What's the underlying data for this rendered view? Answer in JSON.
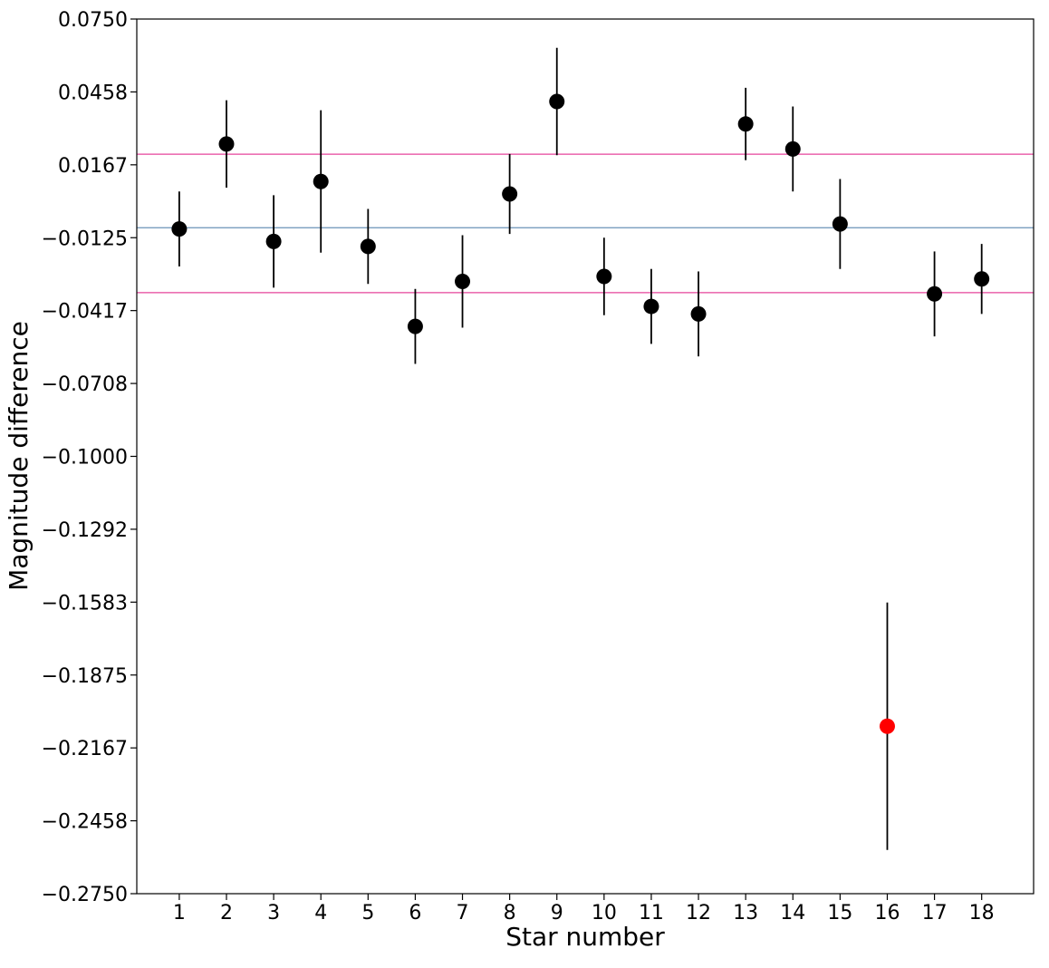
{
  "chart_data": {
    "type": "scatter",
    "title": "",
    "xlabel": "Star number",
    "ylabel": "Magnitude difference",
    "xlim": [
      0.1,
      19.1
    ],
    "ylim": [
      -0.275,
      0.075
    ],
    "x_ticks": [
      "1",
      "2",
      "3",
      "4",
      "5",
      "6",
      "7",
      "8",
      "9",
      "10",
      "11",
      "12",
      "13",
      "14",
      "15",
      "16",
      "17",
      "18"
    ],
    "y_ticks": [
      "0.0750",
      "0.0458",
      "0.0167",
      "−0.0125",
      "−0.0417",
      "−0.0708",
      "−0.1000",
      "−0.1292",
      "−0.1583",
      "−0.1875",
      "−0.2167",
      "−0.2458",
      "−0.2750"
    ],
    "grid": false,
    "points": [
      {
        "x": 1,
        "y": -0.009,
        "err_low": 0.015,
        "err_high": 0.015,
        "color": "#000000"
      },
      {
        "x": 2,
        "y": 0.025,
        "err_low": 0.0175,
        "err_high": 0.0175,
        "color": "#000000"
      },
      {
        "x": 3,
        "y": -0.014,
        "err_low": 0.0185,
        "err_high": 0.0185,
        "color": "#000000"
      },
      {
        "x": 4,
        "y": 0.01,
        "err_low": 0.0285,
        "err_high": 0.0285,
        "color": "#000000"
      },
      {
        "x": 5,
        "y": -0.016,
        "err_low": 0.015,
        "err_high": 0.015,
        "color": "#000000"
      },
      {
        "x": 6,
        "y": -0.048,
        "err_low": 0.015,
        "err_high": 0.015,
        "color": "#000000"
      },
      {
        "x": 7,
        "y": -0.03,
        "err_low": 0.0185,
        "err_high": 0.0185,
        "color": "#000000"
      },
      {
        "x": 8,
        "y": 0.005,
        "err_low": 0.016,
        "err_high": 0.016,
        "color": "#000000"
      },
      {
        "x": 9,
        "y": 0.042,
        "err_low": 0.0215,
        "err_high": 0.0215,
        "color": "#000000"
      },
      {
        "x": 10,
        "y": -0.028,
        "err_low": 0.0155,
        "err_high": 0.0155,
        "color": "#000000"
      },
      {
        "x": 11,
        "y": -0.04,
        "err_low": 0.015,
        "err_high": 0.015,
        "color": "#000000"
      },
      {
        "x": 12,
        "y": -0.043,
        "err_low": 0.017,
        "err_high": 0.017,
        "color": "#000000"
      },
      {
        "x": 13,
        "y": 0.033,
        "err_low": 0.0145,
        "err_high": 0.0145,
        "color": "#000000"
      },
      {
        "x": 14,
        "y": 0.023,
        "err_low": 0.017,
        "err_high": 0.017,
        "color": "#000000"
      },
      {
        "x": 15,
        "y": -0.007,
        "err_low": 0.018,
        "err_high": 0.018,
        "color": "#000000"
      },
      {
        "x": 16,
        "y": -0.208,
        "err_low": 0.0495,
        "err_high": 0.0495,
        "color": "#ff0000"
      },
      {
        "x": 17,
        "y": -0.035,
        "err_low": 0.017,
        "err_high": 0.017,
        "color": "#000000"
      },
      {
        "x": 18,
        "y": -0.029,
        "err_low": 0.014,
        "err_high": 0.014,
        "color": "#000000"
      }
    ],
    "hlines": [
      {
        "y": 0.0209,
        "color": "#e5449b"
      },
      {
        "y": -0.0085,
        "color": "#6a93b8"
      },
      {
        "y": -0.0345,
        "color": "#e5449b"
      }
    ]
  }
}
